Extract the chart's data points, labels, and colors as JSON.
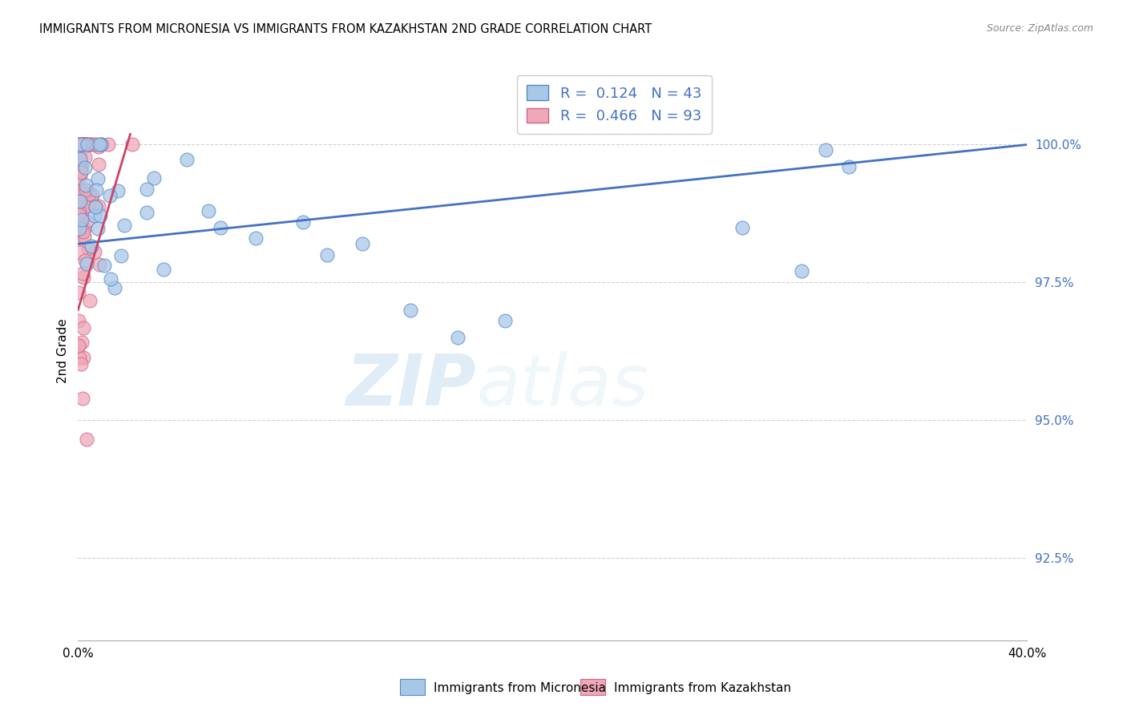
{
  "title": "IMMIGRANTS FROM MICRONESIA VS IMMIGRANTS FROM KAZAKHSTAN 2ND GRADE CORRELATION CHART",
  "source": "Source: ZipAtlas.com",
  "xlabel_blue": "Immigrants from Micronesia",
  "xlabel_pink": "Immigrants from Kazakhstan",
  "ylabel": "2nd Grade",
  "xlim": [
    0.0,
    40.0
  ],
  "ylim": [
    91.0,
    101.5
  ],
  "yticks": [
    92.5,
    95.0,
    97.5,
    100.0
  ],
  "ytick_labels": [
    "92.5%",
    "95.0%",
    "97.5%",
    "100.0%"
  ],
  "blue_R": 0.124,
  "blue_N": 43,
  "pink_R": 0.466,
  "pink_N": 93,
  "blue_color": "#a8c8e8",
  "pink_color": "#f0a8b8",
  "blue_edge_color": "#5588cc",
  "pink_edge_color": "#cc6688",
  "blue_line_color": "#4472c4",
  "pink_line_color": "#cc4466",
  "legend_blue_text": "R =  0.124   N = 43",
  "legend_pink_text": "R =  0.466   N = 93",
  "watermark_zip": "ZIP",
  "watermark_atlas": "atlas"
}
